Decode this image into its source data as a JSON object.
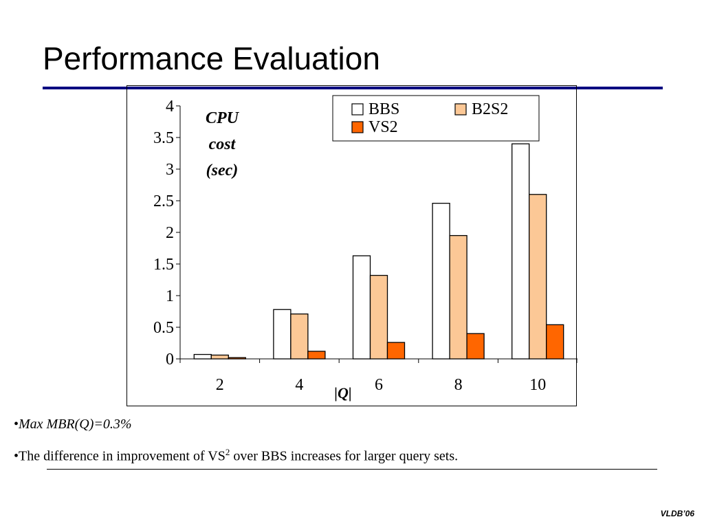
{
  "slide": {
    "title": "Performance Evaluation",
    "bullets": [
      {
        "marker": "•",
        "text": "Max MBR(Q)=0.3%"
      },
      {
        "marker": "•",
        "text_before": "The difference in improvement of VS",
        "superscript": "2",
        "text_after": " over BBS increases for larger query sets."
      }
    ],
    "footer": "VLDB’06"
  },
  "chart_data": {
    "type": "bar",
    "ylabel_lines": [
      "CPU",
      "cost",
      "(sec)"
    ],
    "xlabel": "|Q|",
    "ylim": [
      0,
      4
    ],
    "yticks": [
      "0",
      "0.5",
      "1",
      "1.5",
      "2",
      "2.5",
      "3",
      "3.5",
      "4"
    ],
    "categories": [
      "2",
      "4",
      "6",
      "8",
      "10"
    ],
    "legend_position": "top-right",
    "series": [
      {
        "name": "BBS",
        "color": "#ffffff",
        "values": [
          0.07,
          0.78,
          1.63,
          2.46,
          3.4
        ]
      },
      {
        "name": "B2S2",
        "color": "#fcc896",
        "values": [
          0.06,
          0.71,
          1.32,
          1.95,
          2.6
        ]
      },
      {
        "name": "VS2",
        "color": "#ff6600",
        "values": [
          0.02,
          0.12,
          0.26,
          0.4,
          0.54
        ]
      }
    ]
  }
}
